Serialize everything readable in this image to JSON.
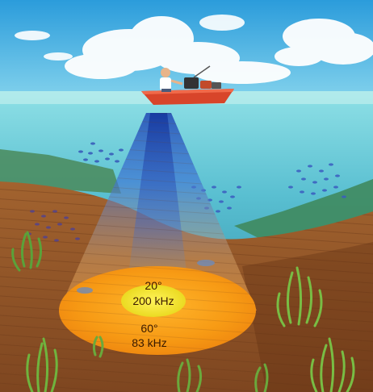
{
  "beams": {
    "narrow": {
      "angle": "20°",
      "frequency": "200 kHz"
    },
    "wide": {
      "angle": "60°",
      "frequency": "83 kHz"
    }
  },
  "colors": {
    "sky": "#2fa3de",
    "water": "#63c6d8",
    "seabed": "#9a5a2c",
    "beam_wide": "#f59a12",
    "beam_narrow": "#f3e51f",
    "boat_hull": "#d8452a"
  },
  "icons": [
    "boat-icon",
    "fisherman-icon",
    "fish-school-icon",
    "seaweed-icon",
    "cloud-icon"
  ]
}
